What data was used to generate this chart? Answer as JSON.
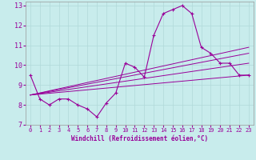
{
  "title": "",
  "xlabel": "Windchill (Refroidissement éolien,°C)",
  "ylabel": "",
  "background_color": "#c8ecec",
  "grid_color": "#b0d8d8",
  "line_color": "#990099",
  "xlim": [
    -0.5,
    23.5
  ],
  "ylim": [
    7,
    13.2
  ],
  "yticks": [
    7,
    8,
    9,
    10,
    11,
    12,
    13
  ],
  "xticks": [
    0,
    1,
    2,
    3,
    4,
    5,
    6,
    7,
    8,
    9,
    10,
    11,
    12,
    13,
    14,
    15,
    16,
    17,
    18,
    19,
    20,
    21,
    22,
    23
  ],
  "main_x": [
    0,
    1,
    2,
    3,
    4,
    5,
    6,
    7,
    8,
    9,
    10,
    11,
    12,
    13,
    14,
    15,
    16,
    17,
    18,
    19,
    20,
    21,
    22,
    23
  ],
  "main_y": [
    9.5,
    8.3,
    8.0,
    8.3,
    8.3,
    8.0,
    7.8,
    7.4,
    8.1,
    8.6,
    10.1,
    9.9,
    9.4,
    11.5,
    12.6,
    12.8,
    13.0,
    12.6,
    10.9,
    10.6,
    10.1,
    10.1,
    9.5,
    9.5
  ],
  "trend_lines": [
    {
      "x": [
        0,
        23
      ],
      "y": [
        8.5,
        9.5
      ]
    },
    {
      "x": [
        0,
        23
      ],
      "y": [
        8.5,
        10.1
      ]
    },
    {
      "x": [
        0,
        23
      ],
      "y": [
        8.5,
        10.6
      ]
    },
    {
      "x": [
        0,
        23
      ],
      "y": [
        8.5,
        10.9
      ]
    }
  ]
}
